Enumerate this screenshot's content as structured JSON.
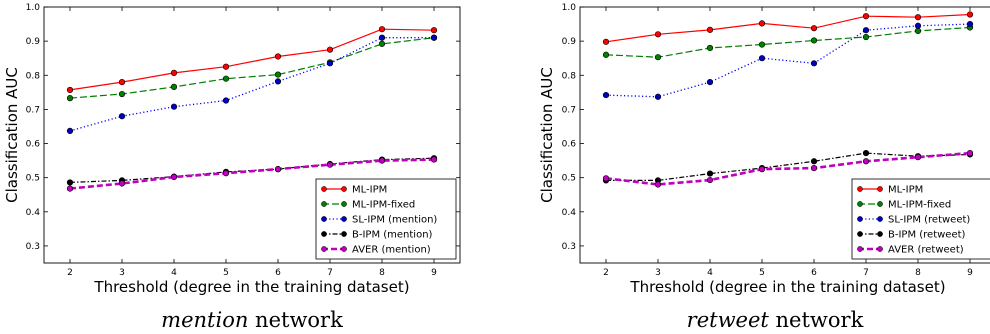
{
  "chart_data": [
    {
      "type": "line",
      "caption_emph": "mention",
      "caption_rest": " network",
      "xlabel": "Threshold (degree in the training dataset)",
      "ylabel": "Classification AUC",
      "x": [
        2,
        3,
        4,
        5,
        6,
        7,
        8,
        9
      ],
      "xlim": [
        1.5,
        9.5
      ],
      "ylim": [
        0.25,
        1.0
      ],
      "yticks": [
        "0.3",
        "0.4",
        "0.5",
        "0.6",
        "0.7",
        "0.8",
        "0.9",
        "1.0"
      ],
      "legend_position": "bottom-right",
      "series": [
        {
          "name": "ML-IPM",
          "color": "#ff0000",
          "marker": "#ff0000",
          "style": "solid",
          "values": [
            0.757,
            0.78,
            0.807,
            0.825,
            0.855,
            0.875,
            0.935,
            0.932
          ]
        },
        {
          "name": "ML-IPM-fixed",
          "color": "#007f00",
          "marker": "#007f00",
          "style": "dashed",
          "values": [
            0.733,
            0.745,
            0.766,
            0.79,
            0.802,
            0.838,
            0.892,
            0.91
          ]
        },
        {
          "name": "SL-IPM (mention)",
          "color": "#0000ff",
          "marker": "#0000bf",
          "style": "dotted",
          "values": [
            0.637,
            0.68,
            0.708,
            0.726,
            0.782,
            0.835,
            0.91,
            0.91
          ]
        },
        {
          "name": "B-IPM (mention)",
          "color": "#000000",
          "marker": "#000000",
          "style": "dashdot",
          "values": [
            0.486,
            0.492,
            0.503,
            0.517,
            0.525,
            0.54,
            0.553,
            0.557
          ]
        },
        {
          "name": "AVER (mention)",
          "color": "#bf00bf",
          "marker": "#bf00bf",
          "style": "bolddash",
          "values": [
            0.468,
            0.483,
            0.502,
            0.513,
            0.525,
            0.538,
            0.55,
            0.553
          ]
        }
      ]
    },
    {
      "type": "line",
      "caption_emph": "retweet",
      "caption_rest": " network",
      "xlabel": "Threshold (degree in the training dataset)",
      "ylabel": "Classification AUC",
      "x": [
        2,
        3,
        4,
        5,
        6,
        7,
        8,
        9
      ],
      "xlim": [
        1.5,
        9.5
      ],
      "ylim": [
        0.25,
        1.0
      ],
      "yticks": [
        "0.3",
        "0.4",
        "0.5",
        "0.6",
        "0.7",
        "0.8",
        "0.9",
        "1.0"
      ],
      "legend_position": "bottom-right",
      "series": [
        {
          "name": "ML-IPM",
          "color": "#ff0000",
          "marker": "#ff0000",
          "style": "solid",
          "values": [
            0.898,
            0.92,
            0.933,
            0.952,
            0.938,
            0.973,
            0.97,
            0.978
          ]
        },
        {
          "name": "ML-IPM-fixed",
          "color": "#007f00",
          "marker": "#007f00",
          "style": "dashed",
          "values": [
            0.86,
            0.853,
            0.88,
            0.89,
            0.902,
            0.912,
            0.93,
            0.94
          ]
        },
        {
          "name": "SL-IPM (retweet)",
          "color": "#0000ff",
          "marker": "#0000bf",
          "style": "dotted",
          "values": [
            0.742,
            0.737,
            0.78,
            0.85,
            0.835,
            0.932,
            0.945,
            0.95
          ]
        },
        {
          "name": "B-IPM (retweet)",
          "color": "#000000",
          "marker": "#000000",
          "style": "dashdot",
          "values": [
            0.492,
            0.492,
            0.512,
            0.528,
            0.548,
            0.572,
            0.563,
            0.568
          ]
        },
        {
          "name": "AVER (retweet)",
          "color": "#bf00bf",
          "marker": "#bf00bf",
          "style": "bolddash",
          "values": [
            0.498,
            0.48,
            0.493,
            0.525,
            0.528,
            0.548,
            0.56,
            0.572
          ]
        }
      ]
    }
  ]
}
